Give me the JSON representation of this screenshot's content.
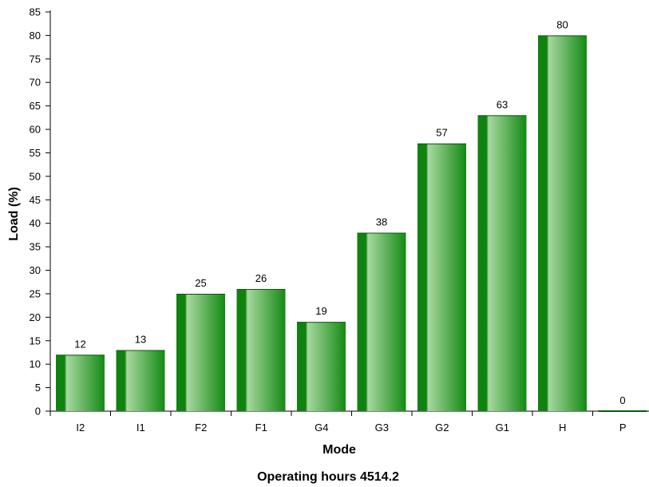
{
  "chart_data": {
    "type": "bar",
    "categories": [
      "I2",
      "I1",
      "F2",
      "F1",
      "G4",
      "G3",
      "G2",
      "G1",
      "H",
      "P"
    ],
    "values": [
      12,
      13,
      25,
      26,
      19,
      38,
      57,
      63,
      80,
      0
    ],
    "data_labels": [
      "12",
      "13",
      "25",
      "26",
      "19",
      "38",
      "57",
      "63",
      "80",
      "0"
    ],
    "xlabel": "Mode",
    "ylabel": "Load (%)",
    "footer": "Operating hours 4514.2",
    "ylim": [
      0,
      85
    ],
    "yticks": [
      0,
      5,
      10,
      15,
      20,
      25,
      30,
      35,
      40,
      45,
      50,
      55,
      60,
      65,
      70,
      75,
      80,
      85
    ],
    "ytick_labels": [
      "0",
      "5",
      "10",
      "15",
      "20",
      "25",
      "30",
      "35",
      "40",
      "45",
      "50",
      "55",
      "60",
      "65",
      "70",
      "75",
      "80",
      "85"
    ],
    "grid": false,
    "legend": "none",
    "colors": {
      "bar_dark": "#0f820f",
      "bar_mid": "#138a13",
      "bar_light": "#a8d8a0",
      "axis": "#000000"
    }
  }
}
